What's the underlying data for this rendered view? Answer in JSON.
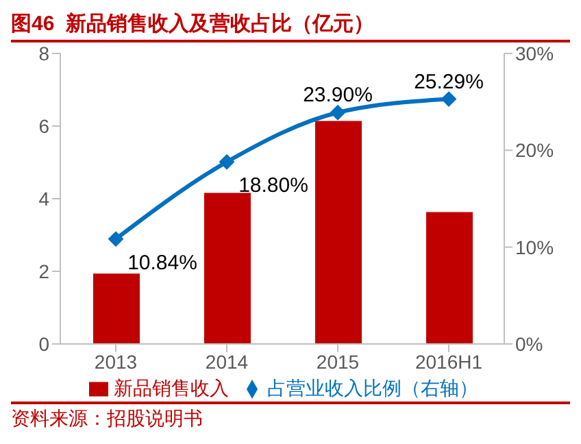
{
  "chart_data": {
    "type": "bar",
    "title": "图46  新品销售收入及营收占比（亿元）",
    "categories": [
      "2013",
      "2014",
      "2015",
      "2016H1"
    ],
    "series": [
      {
        "name": "新品销售收入",
        "color": "#c00000",
        "values": [
          1.94,
          4.16,
          6.14,
          3.63
        ]
      },
      {
        "name": "占营业收入比例（右轴）",
        "type": "line",
        "axis": "y2",
        "color": "#0070c0",
        "values": [
          10.84,
          18.8,
          23.9,
          25.29
        ],
        "value_labels": [
          "10.84%",
          "18.80%",
          "23.90%",
          "25.29%"
        ],
        "marker": "diamond"
      }
    ],
    "ylim": [
      0,
      8
    ],
    "yticks": [
      0,
      2,
      4,
      6,
      8
    ],
    "y2lim": [
      0,
      30
    ],
    "y2ticks": [
      {
        "value": 0,
        "label": "0%"
      },
      {
        "value": 10,
        "label": "10%"
      },
      {
        "value": 20,
        "label": "20%"
      },
      {
        "value": 30,
        "label": "30%"
      }
    ],
    "grid": false,
    "legend": "bottom",
    "annotations": [
      "资料来源：招股说明书"
    ]
  }
}
